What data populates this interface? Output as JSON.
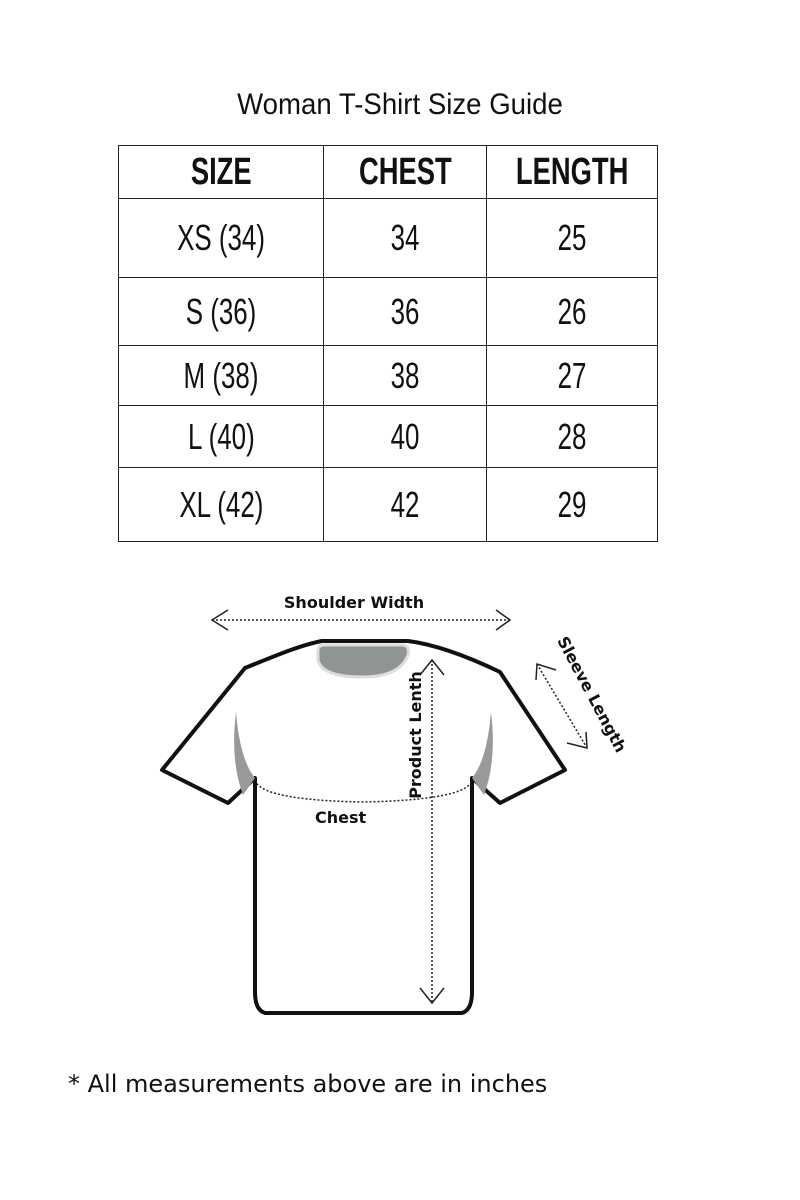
{
  "title": "Woman T-Shirt Size Guide",
  "table": {
    "headers": [
      "SIZE",
      "CHEST",
      "LENGTH"
    ],
    "rows": [
      [
        "XS (34)",
        "34",
        "25"
      ],
      [
        "S (36)",
        "36",
        "26"
      ],
      [
        "M (38)",
        "38",
        "27"
      ],
      [
        "L (40)",
        "40",
        "28"
      ],
      [
        "XL (42)",
        "42",
        "29"
      ]
    ]
  },
  "diagram": {
    "shoulder": "Shoulder Width",
    "product_length": "Product Lenth",
    "sleeve": "Sleeve Length",
    "chest": "Chest"
  },
  "note": "* All measurements above are in inches"
}
